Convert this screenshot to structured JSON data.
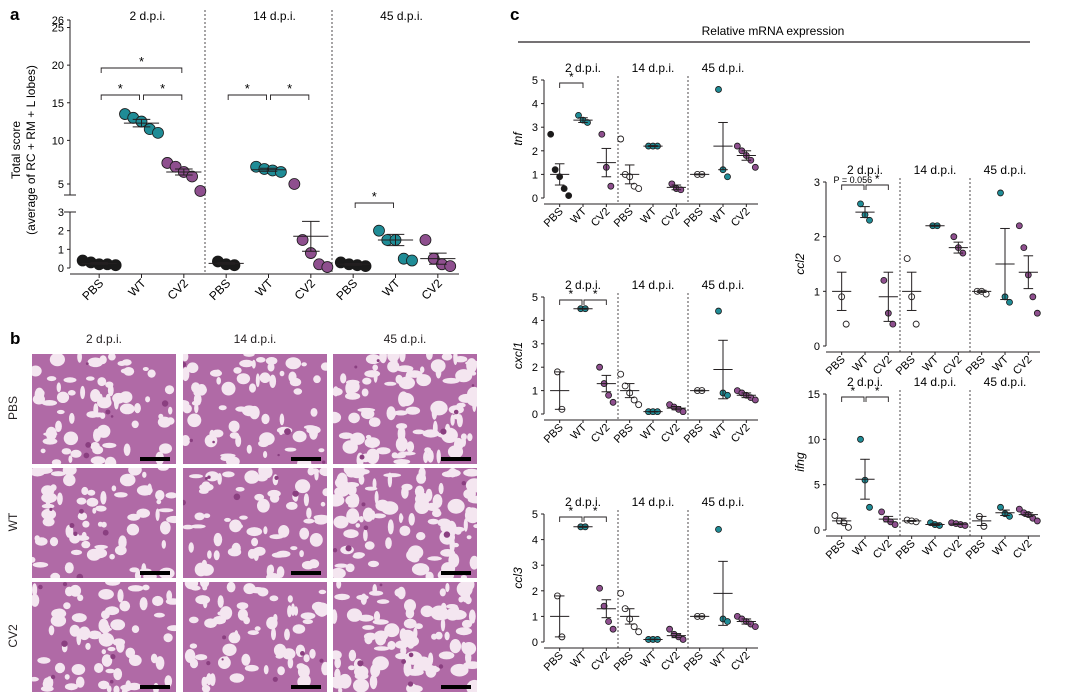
{
  "panel_labels": {
    "a": "a",
    "b": "b",
    "c": "c"
  },
  "colors": {
    "PBS": "#1a1a1a",
    "WT": "#1f8c96",
    "CV2": "#8e4f8e",
    "tissue_bg": "#f4e6f0",
    "tissue_stain": "#b06aa6",
    "tissue_dark": "#8a3f80"
  },
  "panel_c_header": "Relative mRNA expression",
  "panel_b": {
    "col_titles": [
      "2 d.p.i.",
      "14 d.p.i.",
      "45 d.p.i."
    ],
    "row_labels": [
      "PBS",
      "WT",
      "CV2"
    ]
  },
  "chart_data": [
    {
      "id": "total_score",
      "type": "scatter",
      "ylabel": "Total score\n(average of RC + RM + L lobes)",
      "y_ticks_upper": [
        "5",
        "10",
        "15",
        "20",
        "25",
        "26"
      ],
      "y_ticks_lower": [
        "0",
        "1",
        "2",
        "3"
      ],
      "facets": [
        "2 d.p.i.",
        "14 d.p.i.",
        "45 d.p.i."
      ],
      "groups": [
        "PBS",
        "WT",
        "CV2"
      ],
      "series": [
        {
          "facet": "2 d.p.i.",
          "group": "PBS",
          "values": [
            0.4,
            0.3,
            0.2,
            0.2,
            0.15
          ],
          "mean": 0.25,
          "sem": 0.05
        },
        {
          "facet": "2 d.p.i.",
          "group": "WT",
          "values": [
            13.5,
            13.0,
            12.5,
            11.5,
            11.0
          ],
          "mean": 12.3,
          "sem": 0.5
        },
        {
          "facet": "2 d.p.i.",
          "group": "CV2",
          "values": [
            7.0,
            6.5,
            5.8,
            5.2,
            4.5
          ],
          "mean": 5.8,
          "sem": 0.4
        },
        {
          "facet": "14 d.p.i.",
          "group": "PBS",
          "values": [
            0.35,
            0.2,
            0.15
          ],
          "mean": 0.25,
          "sem": 0.05
        },
        {
          "facet": "14 d.p.i.",
          "group": "WT",
          "values": [
            6.5,
            6.2,
            6.0,
            5.8
          ],
          "mean": 6.1,
          "sem": 0.2
        },
        {
          "facet": "14 d.p.i.",
          "group": "CV2",
          "values": [
            5.0,
            1.5,
            0.8,
            0.2,
            0.05
          ],
          "mean": 1.7,
          "sem": 0.8
        },
        {
          "facet": "45 d.p.i.",
          "group": "PBS",
          "values": [
            0.3,
            0.2,
            0.15,
            0.1
          ],
          "mean": 0.2,
          "sem": 0.05
        },
        {
          "facet": "45 d.p.i.",
          "group": "WT",
          "values": [
            2.0,
            1.5,
            1.5,
            0.5,
            0.4
          ],
          "mean": 1.5,
          "sem": 0.3
        },
        {
          "facet": "45 d.p.i.",
          "group": "CV2",
          "values": [
            1.5,
            0.5,
            0.2,
            0.1
          ],
          "mean": 0.5,
          "sem": 0.3
        }
      ],
      "significance": [
        {
          "facet": "2 d.p.i.",
          "from": "PBS",
          "to": "WT",
          "label": "*"
        },
        {
          "facet": "2 d.p.i.",
          "from": "WT",
          "to": "CV2",
          "label": "*"
        },
        {
          "facet": "2 d.p.i.",
          "from": "PBS",
          "to": "CV2",
          "label": "*"
        },
        {
          "facet": "14 d.p.i.",
          "from": "PBS",
          "to": "WT",
          "label": "*"
        },
        {
          "facet": "14 d.p.i.",
          "from": "WT",
          "to": "CV2",
          "label": "*"
        },
        {
          "facet": "45 d.p.i.",
          "from": "PBS",
          "to": "WT",
          "label": "*"
        }
      ]
    },
    {
      "id": "tnf",
      "type": "scatter",
      "ylabel": "tnf",
      "ylim": [
        0,
        5
      ],
      "yticks": [
        "0",
        "1",
        "2",
        "3",
        "4",
        "5"
      ],
      "facets": [
        "2 d.p.i.",
        "14 d.p.i.",
        "45 d.p.i."
      ],
      "groups": [
        "PBS",
        "WT",
        "CV2"
      ],
      "series": [
        {
          "facet": "2 d.p.i.",
          "group": "PBS",
          "values": [
            2.7,
            1.2,
            0.9,
            0.4,
            0.1
          ],
          "mean": 1.0,
          "sem": 0.45
        },
        {
          "facet": "2 d.p.i.",
          "group": "WT",
          "values": [
            3.5,
            3.3,
            3.2
          ],
          "mean": 3.3,
          "sem": 0.1
        },
        {
          "facet": "2 d.p.i.",
          "group": "CV2",
          "values": [
            2.7,
            1.3,
            0.5
          ],
          "mean": 1.5,
          "sem": 0.6
        },
        {
          "facet": "14 d.p.i.",
          "group": "PBS",
          "values": [
            2.5,
            1.0,
            0.9,
            0.5,
            0.4
          ],
          "mean": 1.0,
          "sem": 0.4
        },
        {
          "facet": "14 d.p.i.",
          "group": "WT",
          "values": [
            2.2,
            2.2,
            2.2
          ],
          "mean": 2.2,
          "sem": 0.02
        },
        {
          "facet": "14 d.p.i.",
          "group": "CV2",
          "values": [
            0.6,
            0.4,
            0.35
          ],
          "mean": 0.45,
          "sem": 0.1
        },
        {
          "facet": "45 d.p.i.",
          "group": "PBS",
          "values": [
            1.0,
            1.0
          ],
          "mean": 1.0,
          "sem": 0.02
        },
        {
          "facet": "45 d.p.i.",
          "group": "WT",
          "values": [
            4.6,
            1.2,
            0.9
          ],
          "mean": 2.2,
          "sem": 1.0
        },
        {
          "facet": "45 d.p.i.",
          "group": "CV2",
          "values": [
            2.2,
            2.0,
            1.8,
            1.6,
            1.3
          ],
          "mean": 1.8,
          "sem": 0.2
        }
      ],
      "significance": [
        {
          "facet": "2 d.p.i.",
          "from": "PBS",
          "to": "WT",
          "label": "*"
        }
      ]
    },
    {
      "id": "cxcl1",
      "type": "scatter",
      "ylabel": "cxcl1",
      "ylim": [
        0,
        5
      ],
      "yticks": [
        "0",
        "1",
        "2",
        "3",
        "4",
        "5"
      ],
      "facets": [
        "2 d.p.i.",
        "14 d.p.i.",
        "45 d.p.i."
      ],
      "groups": [
        "PBS",
        "WT",
        "CV2"
      ],
      "series": [
        {
          "facet": "2 d.p.i.",
          "group": "PBS",
          "values": [
            1.8,
            0.2
          ],
          "mean": 1.0,
          "sem": 0.8
        },
        {
          "facet": "2 d.p.i.",
          "group": "WT",
          "values": [
            4.5,
            4.5
          ],
          "mean": 4.5,
          "sem": 0.02
        },
        {
          "facet": "2 d.p.i.",
          "group": "CV2",
          "values": [
            2.0,
            1.3,
            0.8,
            0.5
          ],
          "mean": 1.3,
          "sem": 0.35
        },
        {
          "facet": "14 d.p.i.",
          "group": "PBS",
          "values": [
            1.7,
            1.2,
            0.9,
            0.6,
            0.4
          ],
          "mean": 1.0,
          "sem": 0.3
        },
        {
          "facet": "14 d.p.i.",
          "group": "WT",
          "values": [
            0.1,
            0.1,
            0.1
          ],
          "mean": 0.1,
          "sem": 0.01
        },
        {
          "facet": "14 d.p.i.",
          "group": "CV2",
          "values": [
            0.4,
            0.3,
            0.2,
            0.1
          ],
          "mean": 0.25,
          "sem": 0.07
        },
        {
          "facet": "45 d.p.i.",
          "group": "PBS",
          "values": [
            1.0,
            1.0
          ],
          "mean": 1.0,
          "sem": 0.02
        },
        {
          "facet": "45 d.p.i.",
          "group": "WT",
          "values": [
            4.4,
            0.9,
            0.8
          ],
          "mean": 1.9,
          "sem": 1.25
        },
        {
          "facet": "45 d.p.i.",
          "group": "CV2",
          "values": [
            1.0,
            0.9,
            0.8,
            0.7,
            0.6
          ],
          "mean": 0.8,
          "sem": 0.1
        }
      ],
      "significance": [
        {
          "facet": "2 d.p.i.",
          "from": "PBS",
          "to": "WT",
          "label": "*"
        },
        {
          "facet": "2 d.p.i.",
          "from": "WT",
          "to": "CV2",
          "label": "*"
        }
      ]
    },
    {
      "id": "ccl3",
      "type": "scatter",
      "ylabel": "ccl3",
      "ylim": [
        0,
        5
      ],
      "yticks": [
        "0",
        "1",
        "2",
        "3",
        "4",
        "5"
      ],
      "facets": [
        "2 d.p.i.",
        "14 d.p.i.",
        "45 d.p.i."
      ],
      "groups": [
        "PBS",
        "WT",
        "CV2"
      ],
      "series": [
        {
          "facet": "2 d.p.i.",
          "group": "PBS",
          "values": [
            1.8,
            0.2
          ],
          "mean": 1.0,
          "sem": 0.8
        },
        {
          "facet": "2 d.p.i.",
          "group": "WT",
          "values": [
            4.5,
            4.5
          ],
          "mean": 4.5,
          "sem": 0.02
        },
        {
          "facet": "2 d.p.i.",
          "group": "CV2",
          "values": [
            2.1,
            1.4,
            0.8,
            0.5
          ],
          "mean": 1.3,
          "sem": 0.35
        },
        {
          "facet": "14 d.p.i.",
          "group": "PBS",
          "values": [
            1.9,
            1.3,
            0.9,
            0.6,
            0.4
          ],
          "mean": 1.0,
          "sem": 0.3
        },
        {
          "facet": "14 d.p.i.",
          "group": "WT",
          "values": [
            0.1,
            0.1,
            0.1
          ],
          "mean": 0.1,
          "sem": 0.01
        },
        {
          "facet": "14 d.p.i.",
          "group": "CV2",
          "values": [
            0.5,
            0.3,
            0.2,
            0.1
          ],
          "mean": 0.25,
          "sem": 0.08
        },
        {
          "facet": "45 d.p.i.",
          "group": "PBS",
          "values": [
            1.0,
            1.0
          ],
          "mean": 1.0,
          "sem": 0.02
        },
        {
          "facet": "45 d.p.i.",
          "group": "WT",
          "values": [
            4.4,
            0.9,
            0.8
          ],
          "mean": 1.9,
          "sem": 1.25
        },
        {
          "facet": "45 d.p.i.",
          "group": "CV2",
          "values": [
            1.0,
            0.9,
            0.8,
            0.7,
            0.6
          ],
          "mean": 0.8,
          "sem": 0.1
        }
      ],
      "significance": [
        {
          "facet": "2 d.p.i.",
          "from": "PBS",
          "to": "WT",
          "label": "*"
        },
        {
          "facet": "2 d.p.i.",
          "from": "WT",
          "to": "CV2",
          "label": "*"
        }
      ]
    },
    {
      "id": "ccl2",
      "type": "scatter",
      "ylabel": "ccl2",
      "ylim": [
        0,
        3
      ],
      "yticks": [
        "0",
        "1",
        "2",
        "3"
      ],
      "facets": [
        "2 d.p.i.",
        "14 d.p.i.",
        "45 d.p.i."
      ],
      "groups": [
        "PBS",
        "WT",
        "CV2"
      ],
      "series": [
        {
          "facet": "2 d.p.i.",
          "group": "PBS",
          "values": [
            1.6,
            0.9,
            0.4
          ],
          "mean": 1.0,
          "sem": 0.35
        },
        {
          "facet": "2 d.p.i.",
          "group": "WT",
          "values": [
            2.6,
            2.4,
            2.3
          ],
          "mean": 2.45,
          "sem": 0.1
        },
        {
          "facet": "2 d.p.i.",
          "group": "CV2",
          "values": [
            1.2,
            0.6,
            0.4
          ],
          "mean": 0.9,
          "sem": 0.45
        },
        {
          "facet": "14 d.p.i.",
          "group": "PBS",
          "values": [
            1.6,
            0.9,
            0.4
          ],
          "mean": 1.0,
          "sem": 0.35
        },
        {
          "facet": "14 d.p.i.",
          "group": "WT",
          "values": [
            2.2,
            2.2
          ],
          "mean": 2.2,
          "sem": 0.01
        },
        {
          "facet": "14 d.p.i.",
          "group": "CV2",
          "values": [
            2.0,
            1.8,
            1.7
          ],
          "mean": 1.8,
          "sem": 0.1
        },
        {
          "facet": "45 d.p.i.",
          "group": "PBS",
          "values": [
            1.0,
            1.0,
            0.95
          ],
          "mean": 1.0,
          "sem": 0.02
        },
        {
          "facet": "45 d.p.i.",
          "group": "WT",
          "values": [
            2.8,
            0.9,
            0.8
          ],
          "mean": 1.5,
          "sem": 0.65
        },
        {
          "facet": "45 d.p.i.",
          "group": "CV2",
          "values": [
            2.2,
            1.8,
            1.3,
            0.9,
            0.6
          ],
          "mean": 1.35,
          "sem": 0.3
        }
      ],
      "significance": [
        {
          "facet": "2 d.p.i.",
          "from": "PBS",
          "to": "WT",
          "label": "P = 0.056"
        },
        {
          "facet": "2 d.p.i.",
          "from": "WT",
          "to": "CV2",
          "label": "*"
        }
      ]
    },
    {
      "id": "ifng",
      "type": "scatter",
      "ylabel": "ifng",
      "ylim": [
        0,
        15
      ],
      "yticks": [
        "0",
        "5",
        "10",
        "15"
      ],
      "facets": [
        "2 d.p.i.",
        "14 d.p.i.",
        "45 d.p.i."
      ],
      "groups": [
        "PBS",
        "WT",
        "CV2"
      ],
      "series": [
        {
          "facet": "2 d.p.i.",
          "group": "PBS",
          "values": [
            1.6,
            1.0,
            0.8,
            0.3
          ],
          "mean": 1.0,
          "sem": 0.3
        },
        {
          "facet": "2 d.p.i.",
          "group": "WT",
          "values": [
            10.0,
            5.5,
            2.5
          ],
          "mean": 5.6,
          "sem": 2.2
        },
        {
          "facet": "2 d.p.i.",
          "group": "CV2",
          "values": [
            2.0,
            1.2,
            0.9,
            0.6
          ],
          "mean": 1.2,
          "sem": 0.3
        },
        {
          "facet": "14 d.p.i.",
          "group": "PBS",
          "values": [
            1.1,
            1.0,
            0.9
          ],
          "mean": 1.0,
          "sem": 0.05
        },
        {
          "facet": "14 d.p.i.",
          "group": "WT",
          "values": [
            0.8,
            0.6,
            0.5
          ],
          "mean": 0.6,
          "sem": 0.1
        },
        {
          "facet": "14 d.p.i.",
          "group": "CV2",
          "values": [
            0.8,
            0.7,
            0.6,
            0.5
          ],
          "mean": 0.65,
          "sem": 0.05
        },
        {
          "facet": "45 d.p.i.",
          "group": "PBS",
          "values": [
            1.5,
            0.4
          ],
          "mean": 1.0,
          "sem": 0.5
        },
        {
          "facet": "45 d.p.i.",
          "group": "WT",
          "values": [
            2.5,
            1.8,
            1.5
          ],
          "mean": 1.9,
          "sem": 0.3
        },
        {
          "facet": "45 d.p.i.",
          "group": "CV2",
          "values": [
            2.3,
            1.9,
            1.7,
            1.3,
            1.0
          ],
          "mean": 1.7,
          "sem": 0.2
        }
      ],
      "significance": [
        {
          "facet": "2 d.p.i.",
          "from": "PBS",
          "to": "WT",
          "label": "*"
        },
        {
          "facet": "2 d.p.i.",
          "from": "WT",
          "to": "CV2",
          "label": "*"
        }
      ]
    }
  ]
}
